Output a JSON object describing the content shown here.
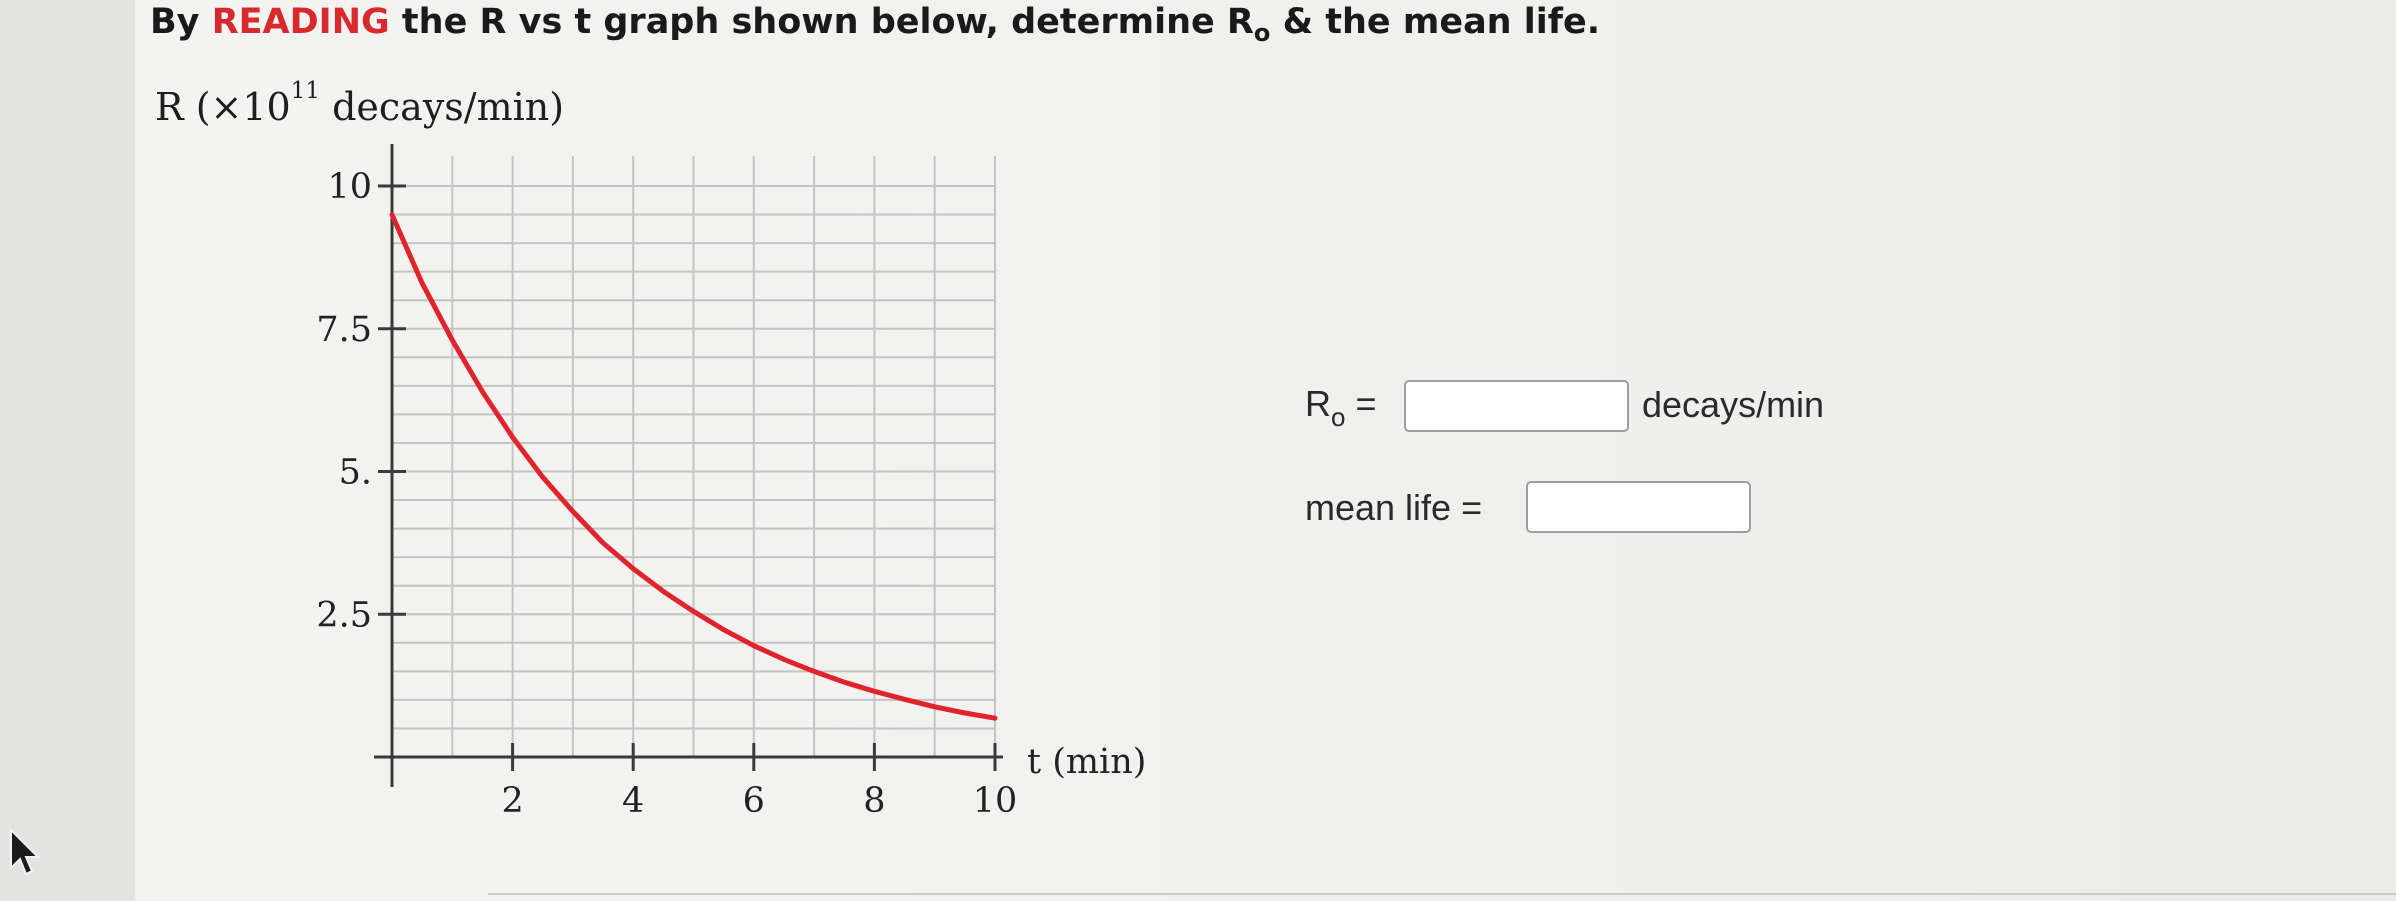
{
  "question": {
    "prefix": "By",
    "highlight": "READING",
    "part1": "the R vs t graph shown below, determine R",
    "sub": "o",
    "part2": "& the mean life."
  },
  "form": {
    "r0_label": "R",
    "r0_sub": "o",
    "r0_eq": "=",
    "r0_value": "",
    "r0_unit": "decays/min",
    "mean_life_label": "mean life =",
    "mean_life_value": ""
  },
  "chart_data": {
    "type": "line",
    "ylabel_prefix": "R (×10",
    "ylabel_exp": "11",
    "ylabel_suffix": " decays/min)",
    "xlabel": "t (min)",
    "xlim": [
      0,
      10
    ],
    "ylim": [
      0,
      10
    ],
    "xticks": [
      2,
      4,
      6,
      8,
      10
    ],
    "xtick_labels": [
      "2",
      "4",
      "6",
      "8",
      "10"
    ],
    "yticks": [
      2.5,
      5,
      7.5,
      10
    ],
    "ytick_labels": [
      "2.5",
      "5.",
      "7.5",
      "10"
    ],
    "grid": true,
    "series": [
      {
        "color": "#e0242b",
        "x": [
          0,
          0.5,
          1,
          1.5,
          2,
          2.5,
          3,
          3.5,
          4,
          4.5,
          5,
          5.5,
          6,
          6.5,
          7,
          7.5,
          8,
          8.5,
          9,
          9.5,
          10
        ],
        "y": [
          9.5,
          8.3,
          7.3,
          6.4,
          5.6,
          4.9,
          4.3,
          3.75,
          3.3,
          2.9,
          2.55,
          2.23,
          1.95,
          1.71,
          1.5,
          1.31,
          1.15,
          1.01,
          0.88,
          0.77,
          0.68
        ]
      }
    ]
  }
}
